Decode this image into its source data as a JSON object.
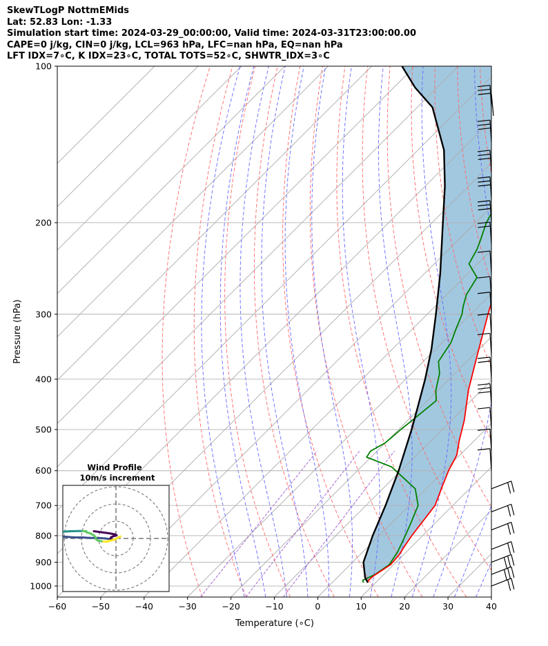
{
  "header": {
    "line1": "SkewTLogP NottmEMids",
    "line2": "Lat: 52.83   Lon: -1.33",
    "line3": "Simulation start time: 2024-03-29_00:00:00, Valid time: 2024-03-31T23:00:00.00",
    "line4": "CAPE=0 j/kg, CIN=0 j/kg, LCL=963 hPa, LFC=nan hPa, EQ=nan hPa",
    "line5": "LFT IDX=7∘C, K IDX=23∘C, TOTAL TOTS=52∘C, SHWTR_IDX=3∘C"
  },
  "inset": {
    "title1": "Wind Profile",
    "title2": "10m/s increment"
  },
  "chart_data": {
    "type": "line",
    "title": "SkewTLogP NottmEMids",
    "xlabel": "Temperature (∘C)",
    "ylabel": "Pressure (hPa)",
    "xlim": [
      -60,
      40
    ],
    "ylim": [
      1050,
      100
    ],
    "yscale": "log",
    "x_ticks": [
      -60,
      -50,
      -40,
      -30,
      -20,
      -10,
      0,
      10,
      20,
      30,
      40
    ],
    "y_ticks": [
      100,
      200,
      300,
      400,
      500,
      600,
      700,
      800,
      900,
      1000
    ],
    "grid": true,
    "series": [
      {
        "name": "",
        "role": "temperature",
        "color": "#ff0000",
        "points": [
          [
            8.2,
            985
          ],
          [
            7.8,
            975
          ],
          [
            8.0,
            955
          ],
          [
            9.3,
            910
          ],
          [
            9.0,
            870
          ],
          [
            8.3,
            840
          ],
          [
            7.5,
            800
          ],
          [
            5.9,
            700
          ],
          [
            3.0,
            640
          ],
          [
            1.0,
            600
          ],
          [
            -0.7,
            560
          ],
          [
            -3.5,
            525
          ],
          [
            -7.0,
            480
          ],
          [
            -13.0,
            420
          ],
          [
            -19.0,
            360
          ],
          [
            -26.0,
            300
          ],
          [
            -27.5,
            288
          ],
          [
            -27.5,
            275
          ],
          [
            -24.5,
            255
          ],
          [
            -25.0,
            240
          ],
          [
            -24.0,
            223
          ],
          [
            -17.5,
            197
          ],
          [
            -12.5,
            170
          ],
          [
            -10.0,
            155
          ],
          [
            -7.5,
            145
          ],
          [
            -5.5,
            135
          ],
          [
            -4.0,
            125
          ],
          [
            -1.5,
            115
          ],
          [
            -1.5,
            107
          ],
          [
            -0.5,
            100
          ]
        ]
      },
      {
        "name": "",
        "role": "dewpoint",
        "color": "#008000",
        "points": [
          [
            7.2,
            985
          ],
          [
            6.5,
            975
          ],
          [
            8.0,
            950
          ],
          [
            9.0,
            910
          ],
          [
            8.0,
            860
          ],
          [
            6.0,
            800
          ],
          [
            4.5,
            760
          ],
          [
            2.0,
            700
          ],
          [
            -2.5,
            650
          ],
          [
            -8.5,
            615
          ],
          [
            -13.0,
            590
          ],
          [
            -21.0,
            565
          ],
          [
            -21.5,
            550
          ],
          [
            -20.0,
            530
          ],
          [
            -19.5,
            500
          ],
          [
            -19.0,
            480
          ],
          [
            -18.0,
            440
          ],
          [
            -20.5,
            420
          ],
          [
            -23.5,
            390
          ],
          [
            -26.5,
            370
          ],
          [
            -28.0,
            340
          ],
          [
            -30.0,
            320
          ],
          [
            -32.0,
            300
          ],
          [
            -33.5,
            290
          ],
          [
            -35.5,
            275
          ],
          [
            -37.0,
            255
          ],
          [
            -42.0,
            240
          ],
          [
            -43.5,
            225
          ],
          [
            -45.0,
            215
          ],
          [
            -47.5,
            200
          ],
          [
            -50.0,
            180
          ],
          [
            -54.0,
            150
          ],
          [
            -58.0,
            130
          ],
          [
            -61.0,
            110
          ],
          [
            -62.5,
            100
          ]
        ]
      },
      {
        "name": "",
        "role": "parcel",
        "color": "#000000",
        "points": [
          [
            8.2,
            985
          ],
          [
            6.4,
            963
          ],
          [
            2.5,
            900
          ],
          [
            -1.5,
            800
          ],
          [
            -5.5,
            700
          ],
          [
            -10.5,
            600
          ],
          [
            -17.0,
            500
          ],
          [
            -21.0,
            450
          ],
          [
            -25.5,
            400
          ],
          [
            -31.0,
            350
          ],
          [
            -38.0,
            300
          ],
          [
            -46.5,
            250
          ],
          [
            -57.5,
            200
          ],
          [
            -65.5,
            170
          ],
          [
            -74.0,
            145
          ],
          [
            -86.5,
            120
          ],
          [
            -95.0,
            110
          ],
          [
            -103.0,
            100
          ]
        ]
      }
    ],
    "shading": {
      "between": [
        "temperature",
        "parcel"
      ],
      "color": "#a2c8e0"
    },
    "reference_lines": {
      "isotherms_color": "#aaaaaa",
      "dry_adiabats_color": "#ff6666",
      "moist_adiabats_color": "#6666ff",
      "mixing_ratio_color": "#9955cc"
    },
    "hodograph": {
      "rings_ms": [
        10,
        20,
        30
      ],
      "u": [
        -4,
        -2,
        0,
        1.5,
        2,
        1,
        0.5,
        0.5,
        0,
        -1,
        -3,
        -5,
        -7,
        -9,
        -11,
        -13,
        -14,
        -14,
        -13,
        -12,
        -11,
        -10,
        -8,
        -7,
        -6,
        -6,
        -5,
        -4,
        -3.5,
        -3.5,
        -3,
        -1.5,
        -0.5,
        0.5,
        1.5,
        2,
        2.5,
        3
      ],
      "v": [
        1,
        2,
        3,
        4,
        5,
        6,
        7,
        8,
        8.5,
        8,
        7.5,
        7.5,
        7,
        7,
        6.5,
        6,
        5,
        3.5,
        2,
        1.5,
        1.2,
        1,
        0.8,
        0.8,
        1,
        2,
        3,
        5,
        7,
        8.5,
        10,
        11,
        11,
        10,
        9,
        8,
        7,
        6
      ]
    },
    "wind_barbs": [
      {
        "p": 100,
        "speed": "calm",
        "dir": "N"
      },
      {
        "p": 120,
        "speed": 25,
        "dir": "W"
      },
      {
        "p": 140,
        "speed": 25,
        "dir": "W"
      },
      {
        "p": 160,
        "speed": 25,
        "dir": "W"
      },
      {
        "p": 180,
        "speed": 25,
        "dir": "W"
      },
      {
        "p": 200,
        "speed": 25,
        "dir": "W"
      },
      {
        "p": 220,
        "speed": 20,
        "dir": "W"
      },
      {
        "p": 250,
        "speed": 10,
        "dir": "W"
      },
      {
        "p": 280,
        "speed": 10,
        "dir": "W"
      },
      {
        "p": 300,
        "speed": 10,
        "dir": "W"
      },
      {
        "p": 330,
        "speed": 10,
        "dir": "W"
      },
      {
        "p": 360,
        "speed": 10,
        "dir": "W"
      },
      {
        "p": 400,
        "speed": 20,
        "dir": "NW"
      },
      {
        "p": 450,
        "speed": 25,
        "dir": "NW"
      },
      {
        "p": 500,
        "speed": 10,
        "dir": "W"
      },
      {
        "p": 550,
        "speed": 10,
        "dir": "W"
      },
      {
        "p": 600,
        "speed": 10,
        "dir": "W"
      },
      {
        "p": 650,
        "speed": 15,
        "dir": "SW"
      },
      {
        "p": 720,
        "speed": 15,
        "dir": "SW"
      },
      {
        "p": 780,
        "speed": 20,
        "dir": "SW"
      },
      {
        "p": 850,
        "speed": 20,
        "dir": "SW"
      },
      {
        "p": 900,
        "speed": 25,
        "dir": "SW"
      },
      {
        "p": 950,
        "speed": 30,
        "dir": "SW"
      },
      {
        "p": 1000,
        "speed": 20,
        "dir": "SW"
      }
    ]
  }
}
